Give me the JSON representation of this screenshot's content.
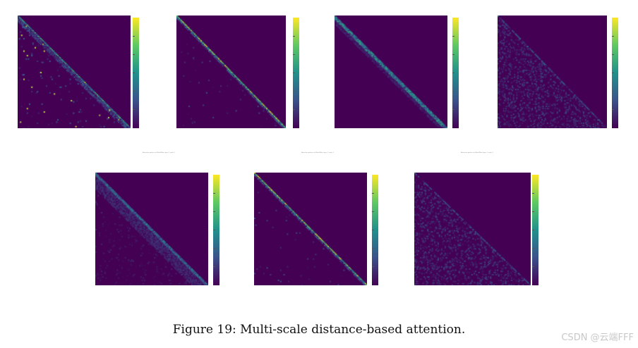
{
  "figure": {
    "caption": "Figure 19: Multi-scale distance-based attention.",
    "subplot_label": "Attention pattern in BlockWise layer 1 scale 1",
    "watermark": "CSDN @云端FFF"
  },
  "chart_data": {
    "type": "heatmap",
    "colormap": "viridis",
    "colors": [
      "#440154",
      "#3b528b",
      "#21918c",
      "#5ec962",
      "#fde725"
    ],
    "grid_size": 100,
    "panels": [
      {
        "name": "panel-1",
        "pattern": "sharp-diagonal-with-outliers",
        "lower_triangular": true
      },
      {
        "name": "panel-2",
        "pattern": "very-sharp-diagonal",
        "lower_triangular": true
      },
      {
        "name": "panel-3",
        "pattern": "narrow-band-diagonal",
        "lower_triangular": true
      },
      {
        "name": "panel-4",
        "pattern": "diffuse-lower-triangle",
        "lower_triangular": true
      },
      {
        "name": "panel-5",
        "pattern": "diffuse-diagonal-band",
        "lower_triangular": true
      },
      {
        "name": "panel-6",
        "pattern": "very-sharp-diagonal",
        "lower_triangular": true
      },
      {
        "name": "panel-7",
        "pattern": "diffuse-lower-triangle",
        "lower_triangular": true
      }
    ]
  }
}
